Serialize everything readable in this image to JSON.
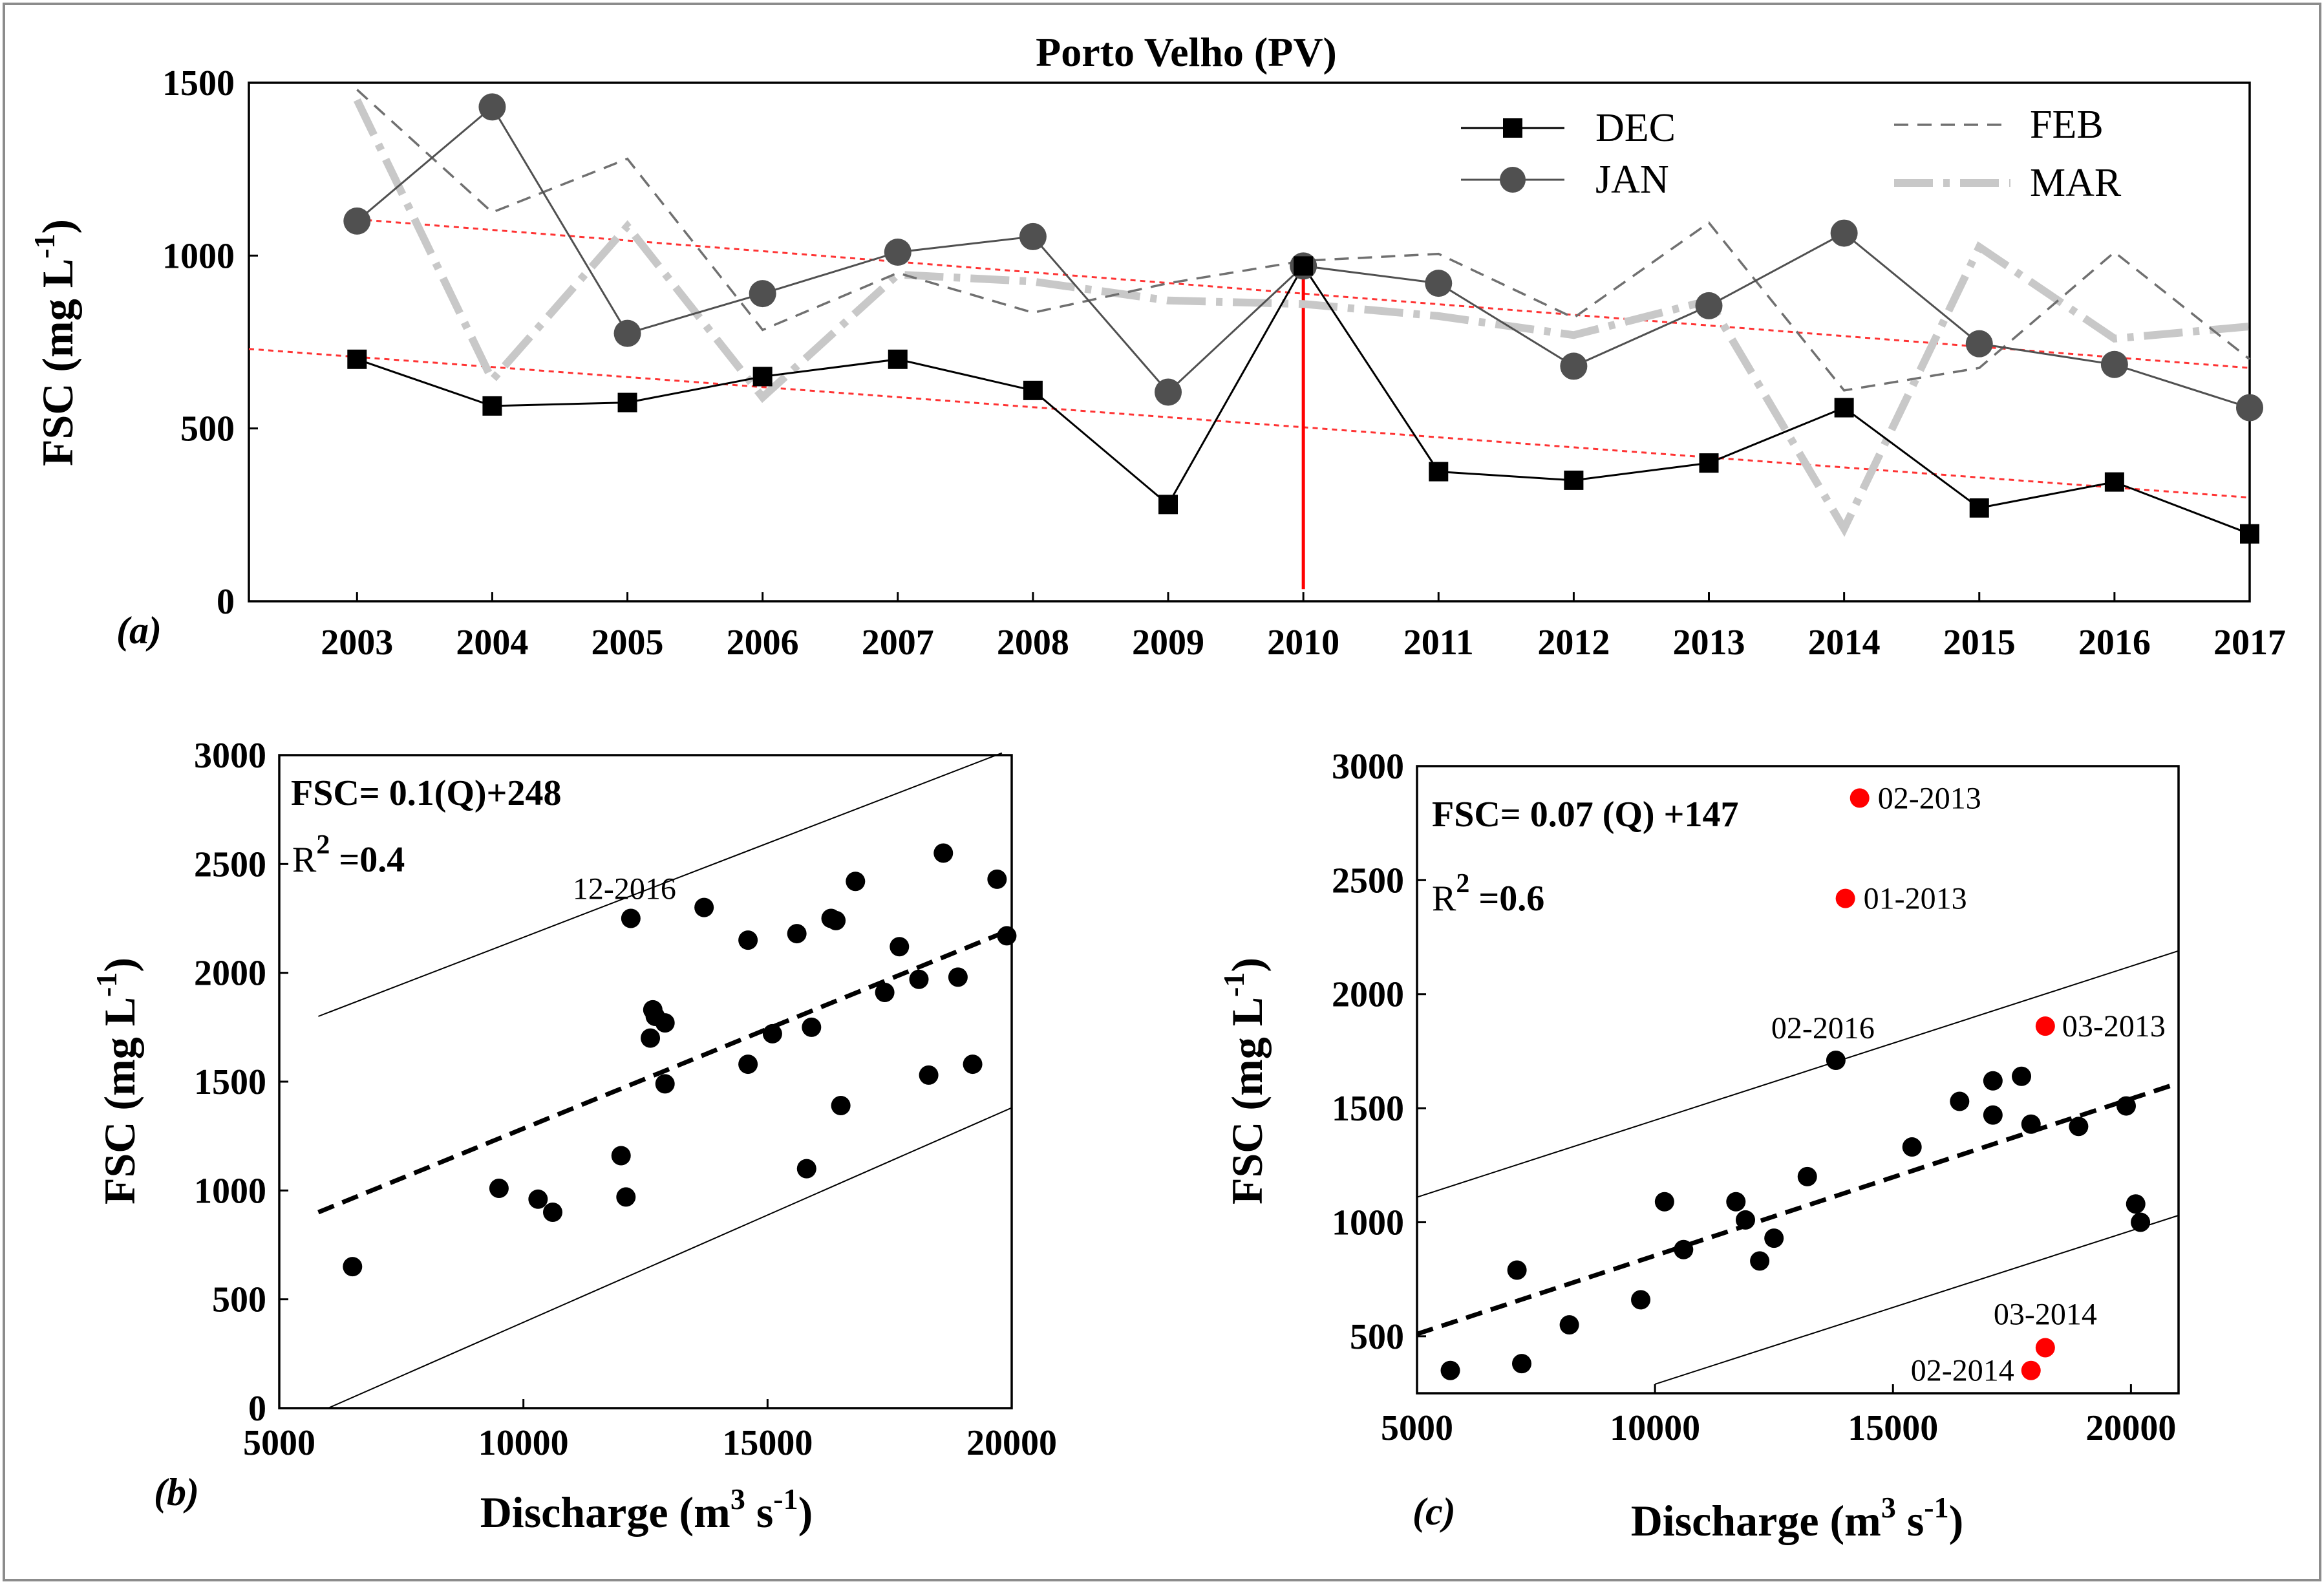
{
  "colors": {
    "dec": "#000000",
    "jan": "#505050",
    "feb": "#707070",
    "mar": "#c8c8c8",
    "trend": "#ff3333",
    "marker_2010": "#ff0000",
    "highlight": "#ff0000",
    "point": "#000000"
  },
  "chart_data": [
    {
      "id": "a",
      "type": "line",
      "panel_label": "(a)",
      "title": "Porto Velho (PV)",
      "xlabel": "",
      "ylabel": "FSC (mg L",
      "ylabel_sup": "-1",
      "ylabel_end": ")",
      "x": [
        2003,
        2004,
        2005,
        2006,
        2007,
        2008,
        2009,
        2010,
        2011,
        2012,
        2013,
        2014,
        2015,
        2016,
        2017
      ],
      "xlim": [
        2002.2,
        2017
      ],
      "ylim": [
        0,
        1500
      ],
      "yticks": [
        0,
        500,
        1000,
        1500
      ],
      "series": [
        {
          "name": "DEC",
          "style": "solid-square",
          "values": [
            700,
            565,
            575,
            650,
            700,
            610,
            280,
            970,
            375,
            350,
            400,
            560,
            270,
            345,
            195
          ]
        },
        {
          "name": "JAN",
          "style": "solid-circle",
          "values": [
            1100,
            1430,
            775,
            890,
            1010,
            1055,
            605,
            970,
            920,
            680,
            855,
            1065,
            745,
            685,
            560
          ]
        },
        {
          "name": "FEB",
          "style": "dashed",
          "values": [
            1480,
            1125,
            1280,
            785,
            950,
            835,
            920,
            985,
            1005,
            820,
            1095,
            610,
            675,
            1010,
            700
          ]
        },
        {
          "name": "MAR",
          "style": "dashdot",
          "values": [
            1450,
            640,
            1085,
            590,
            945,
            925,
            870,
            860,
            825,
            770,
            870,
            210,
            1025,
            760,
            795
          ]
        }
      ],
      "trendlines": [
        {
          "name": "upper",
          "x": [
            2003,
            2017
          ],
          "values": [
            1105,
            675
          ]
        },
        {
          "name": "lower",
          "x": [
            2002.2,
            2017
          ],
          "values": [
            730,
            300
          ]
        }
      ],
      "vline": {
        "x": 2010,
        "ymin": 35,
        "ymax": 975
      }
    },
    {
      "id": "b",
      "type": "scatter",
      "panel_label": "(b)",
      "xlabel": "Discharge (m",
      "xlabel_sup": "3",
      "xlabel_mid": " s",
      "xlabel_sup2": "-1",
      "xlabel_end": ")",
      "ylabel": "FSC (mg L",
      "ylabel_sup": "-1",
      "ylabel_end": ")",
      "xlim": [
        5000,
        20000
      ],
      "ylim": [
        0,
        3000
      ],
      "xticks": [
        5000,
        10000,
        15000,
        20000
      ],
      "yticks": [
        0,
        500,
        1000,
        1500,
        2000,
        2500,
        3000
      ],
      "equation": "FSC= 0.1(Q)+248",
      "r2_label": "R",
      "r2_sup": "2",
      "r2_value": " =0.4",
      "fit": {
        "x": [
          5800,
          20000
        ],
        "y": [
          900,
          2200
        ]
      },
      "band_upper": {
        "x": [
          5800,
          19800
        ],
        "y": [
          1800,
          3010
        ]
      },
      "band_lower": {
        "x": [
          6000,
          20000
        ],
        "y": [
          0,
          1380
        ]
      },
      "points": {
        "x": [
          6500,
          9500,
          10300,
          10600,
          12000,
          12100,
          12200,
          12600,
          12650,
          12700,
          12900,
          12900,
          13700,
          14600,
          14600,
          15100,
          15600,
          15800,
          15900,
          16300,
          16400,
          16500,
          16800,
          17400,
          17700,
          18100,
          18300,
          18600,
          18900,
          19200,
          19700,
          19900
        ],
        "y": [
          650,
          1010,
          960,
          900,
          1160,
          970,
          2250,
          1700,
          1830,
          1800,
          1770,
          1490,
          2300,
          2150,
          1580,
          1720,
          2180,
          1100,
          1750,
          2250,
          2240,
          1390,
          2420,
          1910,
          2120,
          1970,
          1530,
          2550,
          1980,
          1580,
          2430,
          2170
        ]
      },
      "annotations": [
        {
          "text": "12-2016",
          "x": 12200,
          "y": 2250
        }
      ]
    },
    {
      "id": "c",
      "type": "scatter",
      "panel_label": "(c)",
      "xlabel": "Discharge (m",
      "xlabel_sup": "3",
      "xlabel_mid": " s",
      "xlabel_sup2": "-1",
      "xlabel_end": ")",
      "ylabel": "FSC (mg L",
      "ylabel_sup": "-1",
      "ylabel_end": ")",
      "xlim": [
        5000,
        21000
      ],
      "ylim": [
        250,
        3000
      ],
      "xticks": [
        5000,
        10000,
        15000,
        20000
      ],
      "yticks": [
        500,
        1000,
        1500,
        2000,
        2500,
        3000
      ],
      "equation": "FSC= 0.07 (Q) +147",
      "r2_label": "R",
      "r2_sup": "2",
      "r2_value": " =0.6",
      "fit": {
        "x": [
          5000,
          21000
        ],
        "y": [
          510,
          1610
        ]
      },
      "band_upper": {
        "x": [
          5000,
          21000
        ],
        "y": [
          1110,
          2190
        ]
      },
      "band_lower": {
        "x": [
          10000,
          21000
        ],
        "y": [
          290,
          1030
        ]
      },
      "points": {
        "x": [
          5700,
          7100,
          7200,
          8200,
          9700,
          10200,
          10600,
          11700,
          11900,
          12200,
          12500,
          13200,
          13800,
          15400,
          16400,
          17100,
          17100,
          17700,
          17900,
          18900,
          19900,
          20100,
          20200
        ],
        "y": [
          350,
          790,
          380,
          550,
          660,
          1090,
          880,
          1090,
          1010,
          830,
          930,
          1200,
          1710,
          1330,
          1530,
          1620,
          1470,
          1640,
          1430,
          1420,
          1510,
          1080,
          1000
        ]
      },
      "highlight_points": {
        "x": [
          14300,
          14000,
          18200,
          18200,
          17900
        ],
        "y": [
          2860,
          2420,
          1860,
          450,
          350
        ]
      },
      "annotations": [
        {
          "text": "02-2013",
          "x": 14300,
          "y": 2860
        },
        {
          "text": "01-2013",
          "x": 14000,
          "y": 2420
        },
        {
          "text": "02-2016",
          "x": 13800,
          "y": 1710
        },
        {
          "text": "03-2013",
          "x": 18200,
          "y": 1860
        },
        {
          "text": "03-2014",
          "x": 18200,
          "y": 450
        },
        {
          "text": "02-2014",
          "x": 17900,
          "y": 350
        }
      ]
    }
  ]
}
